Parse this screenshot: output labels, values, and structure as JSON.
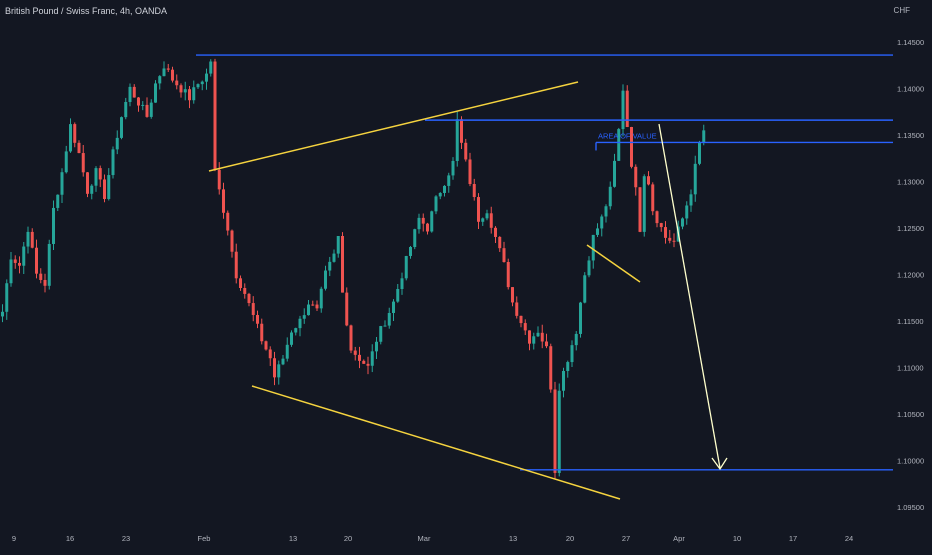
{
  "header": {
    "title": "British Pound / Swiss Franc, 4h, OANDA",
    "currency": "CHF"
  },
  "chart_data": {
    "type": "candlestick",
    "title": "British Pound / Swiss Franc, 4h, OANDA",
    "ylabel": "CHF",
    "ylim": [
      1.093,
      1.148
    ],
    "y_ticks": [
      "1.14500",
      "1.14000",
      "1.13500",
      "1.13000",
      "1.12500",
      "1.12000",
      "1.11500",
      "1.11000",
      "1.10500",
      "1.10000",
      "1.09500"
    ],
    "x_ticks": [
      "9",
      "16",
      "23",
      "Feb",
      "13",
      "20",
      "Mar",
      "13",
      "20",
      "27",
      "Apr",
      "10",
      "17",
      "24"
    ],
    "grid": false,
    "colors": {
      "up": "#26a69a",
      "down": "#ef5350",
      "level": "#2962ff",
      "trend": "#f5d33f",
      "arrow": "#ffffcc",
      "background": "#131722"
    },
    "horizontal_levels": [
      1.1436,
      1.1366,
      1.1342,
      1.099
    ],
    "annotation": {
      "text": "AREA OF VALUE",
      "value": 1.135
    },
    "price_path": [
      [
        0,
        1.116
      ],
      [
        2,
        1.122
      ],
      [
        4,
        1.121
      ],
      [
        6,
        1.125
      ],
      [
        8,
        1.12
      ],
      [
        10,
        1.119
      ],
      [
        12,
        1.127
      ],
      [
        14,
        1.131
      ],
      [
        16,
        1.136
      ],
      [
        18,
        1.133
      ],
      [
        20,
        1.129
      ],
      [
        22,
        1.131
      ],
      [
        24,
        1.1285
      ],
      [
        26,
        1.133
      ],
      [
        28,
        1.137
      ],
      [
        30,
        1.14
      ],
      [
        32,
        1.1385
      ],
      [
        34,
        1.137
      ],
      [
        36,
        1.1405
      ],
      [
        38,
        1.1425
      ],
      [
        40,
        1.141
      ],
      [
        42,
        1.14
      ],
      [
        44,
        1.139
      ],
      [
        46,
        1.1405
      ],
      [
        48,
        1.1415
      ],
      [
        49,
        1.143
      ],
      [
        50,
        1.131
      ],
      [
        51,
        1.129
      ],
      [
        53,
        1.125
      ],
      [
        55,
        1.12
      ],
      [
        57,
        1.118
      ],
      [
        59,
        1.1155
      ],
      [
        61,
        1.113
      ],
      [
        63,
        1.111
      ],
      [
        64,
        1.109
      ],
      [
        66,
        1.111
      ],
      [
        68,
        1.114
      ],
      [
        70,
        1.115
      ],
      [
        72,
        1.117
      ],
      [
        74,
        1.116
      ],
      [
        76,
        1.12
      ],
      [
        78,
        1.122
      ],
      [
        79,
        1.124
      ],
      [
        80,
        1.118
      ],
      [
        82,
        1.112
      ],
      [
        84,
        1.111
      ],
      [
        86,
        1.11
      ],
      [
        88,
        1.113
      ],
      [
        90,
        1.115
      ],
      [
        92,
        1.117
      ],
      [
        94,
        1.12
      ],
      [
        96,
        1.123
      ],
      [
        98,
        1.126
      ],
      [
        100,
        1.125
      ],
      [
        102,
        1.128
      ],
      [
        104,
        1.13
      ],
      [
        106,
        1.132
      ],
      [
        107,
        1.1365
      ],
      [
        108,
        1.134
      ],
      [
        110,
        1.13
      ],
      [
        112,
        1.126
      ],
      [
        114,
        1.127
      ],
      [
        116,
        1.124
      ],
      [
        118,
        1.121
      ],
      [
        120,
        1.117
      ],
      [
        122,
        1.115
      ],
      [
        124,
        1.113
      ],
      [
        126,
        1.114
      ],
      [
        128,
        1.112
      ],
      [
        129,
        1.108
      ],
      [
        130,
        1.099
      ],
      [
        131,
        1.108
      ],
      [
        133,
        1.111
      ],
      [
        135,
        1.114
      ],
      [
        137,
        1.12
      ],
      [
        139,
        1.124
      ],
      [
        141,
        1.126
      ],
      [
        143,
        1.129
      ],
      [
        144,
        1.132
      ],
      [
        145,
        1.1355
      ],
      [
        146,
        1.14
      ],
      [
        147,
        1.136
      ],
      [
        148,
        1.132
      ],
      [
        149,
        1.129
      ],
      [
        150,
        1.125
      ],
      [
        151,
        1.131
      ],
      [
        152,
        1.13
      ],
      [
        153,
        1.127
      ],
      [
        154,
        1.126
      ],
      [
        156,
        1.124
      ],
      [
        158,
        1.1235
      ],
      [
        160,
        1.126
      ],
      [
        162,
        1.129
      ],
      [
        164,
        1.134
      ],
      [
        165,
        1.1355
      ]
    ]
  }
}
